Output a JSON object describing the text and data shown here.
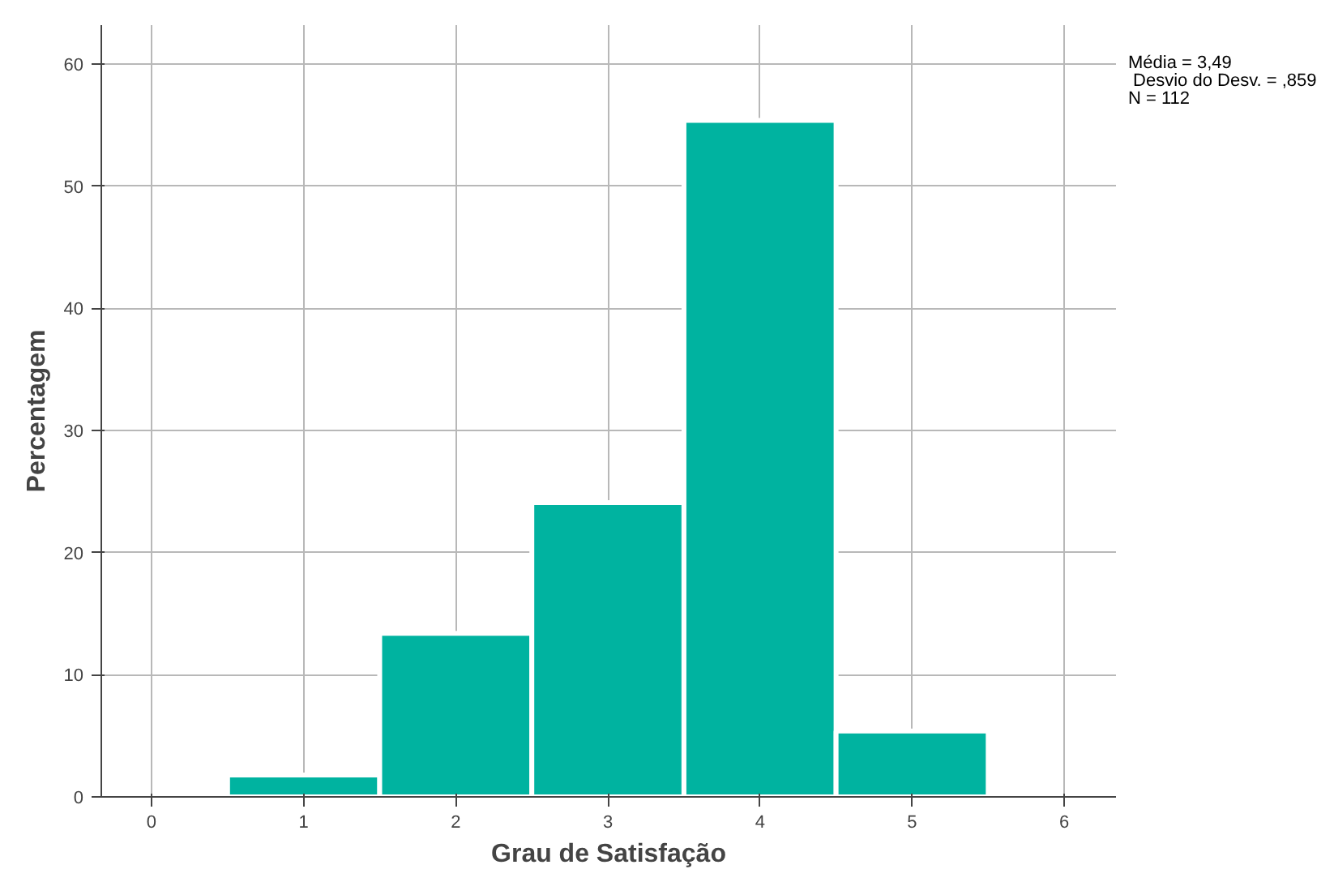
{
  "chart_data": {
    "type": "histogram",
    "xlabel": "Grau de Satisfação",
    "ylabel": "Percentagem",
    "bins": [
      0.5,
      1.5,
      2.5,
      3.5,
      4.5,
      5.5
    ],
    "values": [
      1.8,
      13.4,
      24.1,
      55.4,
      5.4
    ],
    "color": "#00b3a0",
    "xlim": [
      -0.33,
      6.34
    ],
    "xticks": [
      0,
      1,
      2,
      3,
      4,
      5,
      6
    ],
    "ylim": [
      0,
      63.2
    ],
    "yticks": [
      0,
      10,
      20,
      30,
      40,
      50,
      60
    ],
    "grid": true,
    "annotations": [
      "Média = 3,49\n Desvio do Desv. = ,859\nN = 112"
    ]
  }
}
